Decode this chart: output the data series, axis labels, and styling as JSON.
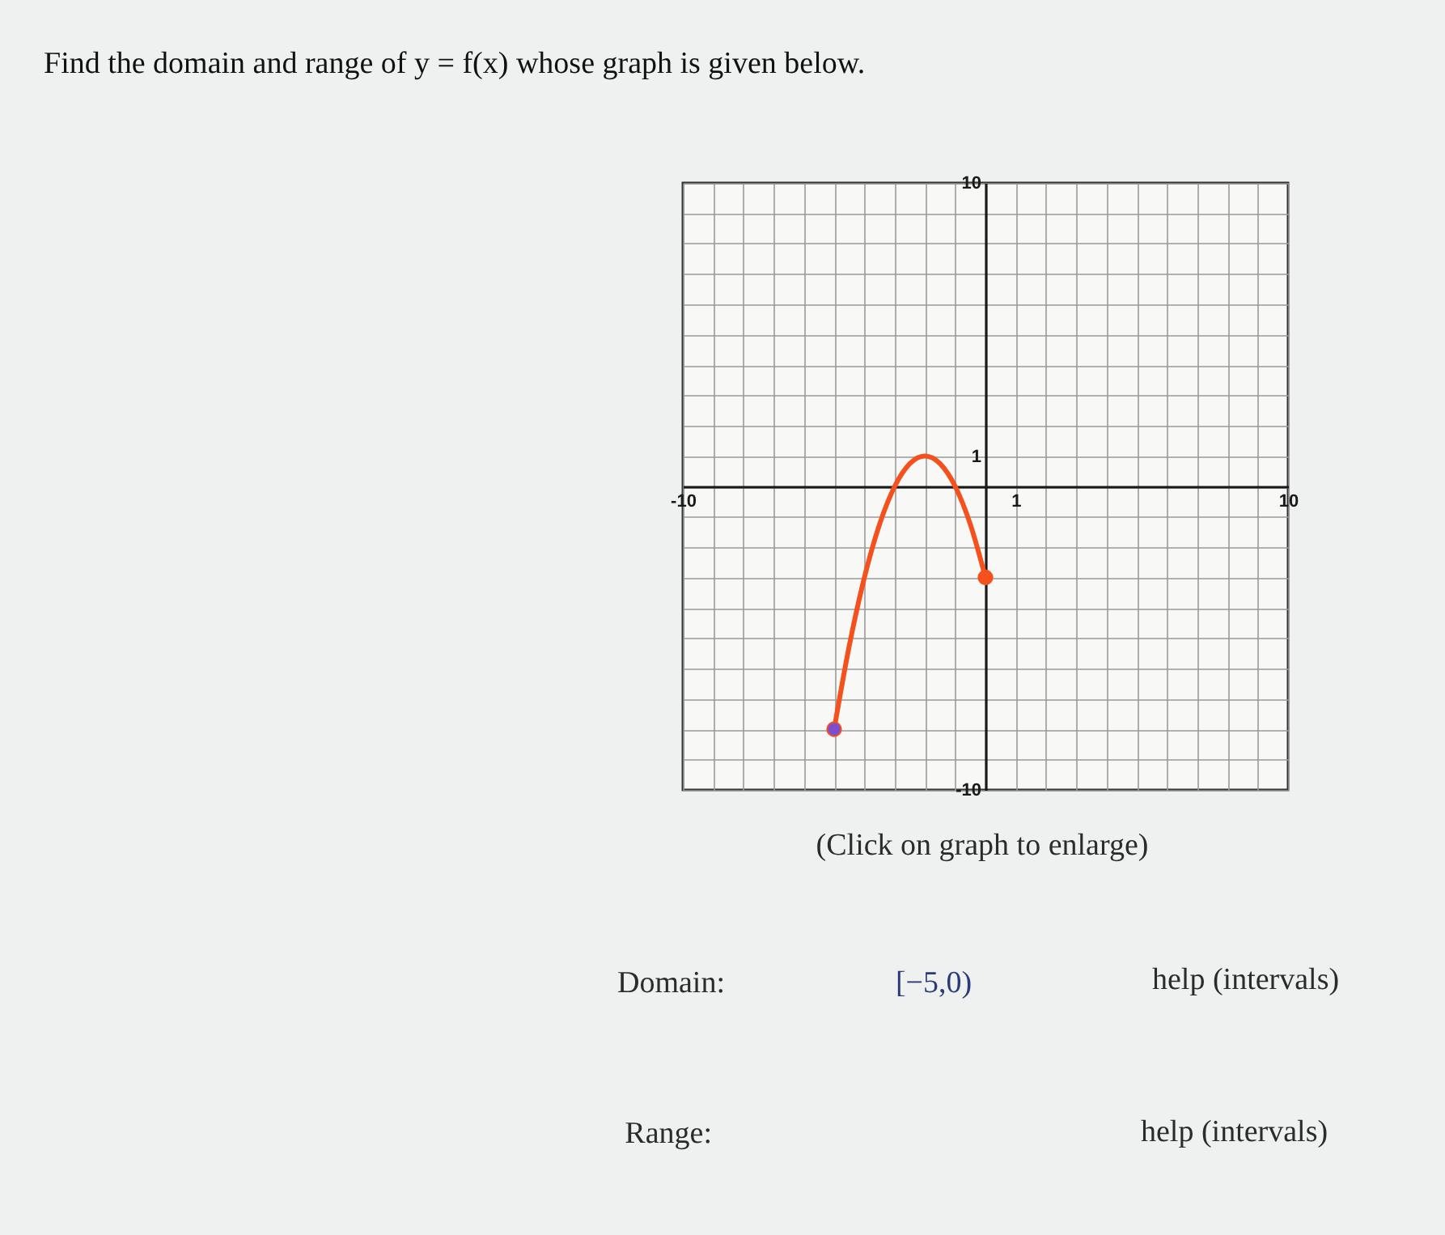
{
  "chart_data": {
    "type": "line",
    "title": "Find the domain and range of y = f(x) whose graph is given below.",
    "series": [
      {
        "color": "#f4511e",
        "x": [
          -5,
          -4.5,
          -4,
          -3.5,
          -3,
          -2.5,
          -2,
          -1.5,
          -1,
          -0.5,
          0
        ],
        "values": [
          -8,
          -5.25,
          -3,
          -1.25,
          0,
          0.75,
          1,
          0.75,
          0,
          -1.25,
          -3
        ]
      },
      {
        "type": "scatter",
        "color": "#7b4fd0",
        "marker": "circle",
        "x": [
          -5
        ],
        "values": [
          -8
        ]
      },
      {
        "type": "scatter",
        "color": "#f4511e",
        "marker": "circle",
        "x": [
          0
        ],
        "values": [
          -3
        ]
      }
    ],
    "xlim": [
      -10,
      10
    ],
    "ylim": [
      -10,
      10
    ],
    "xticks": [
      -10,
      {
        "value": -9,
        "label": null
      },
      {
        "value": -8,
        "label": null
      },
      {
        "value": -7,
        "label": null
      },
      {
        "value": -6,
        "label": null
      },
      {
        "value": -5,
        "label": null
      },
      {
        "value": -4,
        "label": null
      },
      {
        "value": -3,
        "label": null
      },
      {
        "value": -2,
        "label": null
      },
      {
        "value": -1,
        "label": null
      },
      {
        "value": 0,
        "label": null
      },
      1,
      {
        "value": 2,
        "label": null
      },
      {
        "value": 3,
        "label": null
      },
      {
        "value": 4,
        "label": null
      },
      {
        "value": 5,
        "label": null
      },
      {
        "value": 6,
        "label": null
      },
      {
        "value": 7,
        "label": null
      },
      {
        "value": 8,
        "label": null
      },
      {
        "value": 9,
        "label": null
      },
      10
    ],
    "yticks": [
      -10,
      {
        "value": -9,
        "label": null
      },
      {
        "value": -8,
        "label": null
      },
      {
        "value": -7,
        "label": null
      },
      {
        "value": -6,
        "label": null
      },
      {
        "value": -5,
        "label": null
      },
      {
        "value": -4,
        "label": null
      },
      {
        "value": -3,
        "label": null
      },
      {
        "value": -2,
        "label": null
      },
      {
        "value": -1,
        "label": null
      },
      {
        "value": 0,
        "label": null
      },
      1,
      {
        "value": 2,
        "label": null
      },
      {
        "value": 3,
        "label": null
      },
      {
        "value": 4,
        "label": null
      },
      {
        "value": 5,
        "label": null
      },
      {
        "value": 6,
        "label": null
      },
      {
        "value": 7,
        "label": null
      },
      {
        "value": 8,
        "label": null
      },
      {
        "value": 9,
        "label": null
      },
      10
    ],
    "grid": true,
    "annotations": [
      "(Click on graph to enlarge)",
      "Domain:",
      "[−5,0)",
      "help (intervals)",
      "Range:",
      "help (intervals)"
    ]
  }
}
